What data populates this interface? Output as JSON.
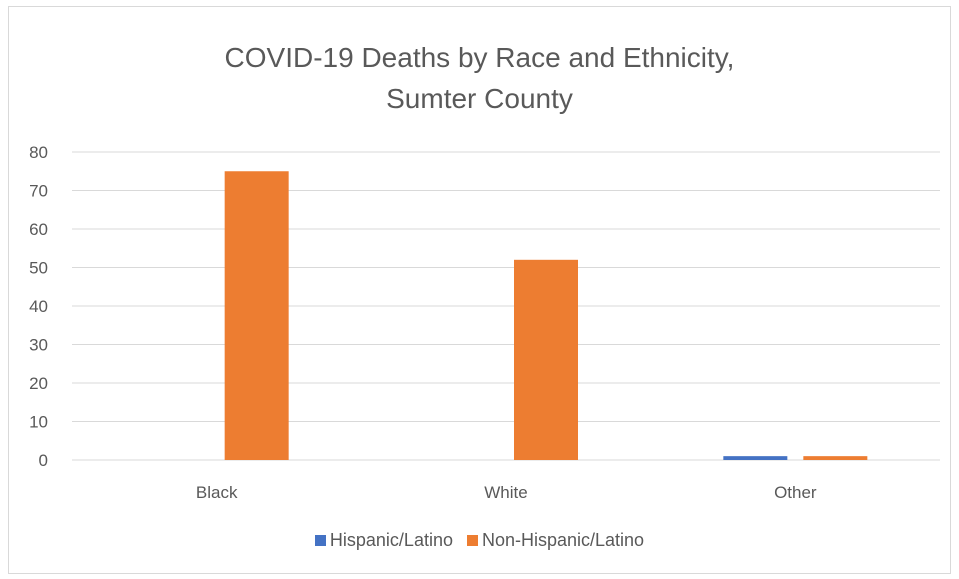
{
  "chart_data": {
    "type": "bar",
    "title_lines": [
      "COVID-19 Deaths by Race and Ethnicity,",
      "Sumter County"
    ],
    "categories": [
      "Black",
      "White",
      "Other"
    ],
    "series": [
      {
        "name": "Hispanic/Latino",
        "values": [
          0,
          0,
          1
        ],
        "color": "#4472c4"
      },
      {
        "name": "Non-Hispanic/Latino",
        "values": [
          75,
          52,
          1
        ],
        "color": "#ed7d31"
      }
    ],
    "ylim": [
      0,
      80
    ],
    "yticks": [
      "0",
      "10",
      "20",
      "30",
      "40",
      "50",
      "60",
      "70",
      "80"
    ],
    "grid": true,
    "legend_position": "bottom"
  }
}
